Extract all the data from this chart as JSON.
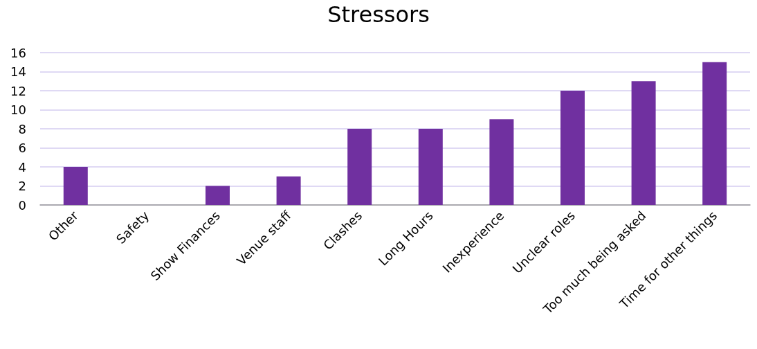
{
  "chart_data": {
    "type": "bar",
    "title": "Stressors",
    "categories": [
      "Other",
      "Safety",
      "Show Finances",
      "Venue staff",
      "Clashes",
      "Long Hours",
      "Inexperience",
      "Unclear roles",
      "Too much being asked",
      "Time for other things"
    ],
    "values": [
      4,
      0,
      2,
      3,
      8,
      8,
      9,
      12,
      13,
      15
    ],
    "color": "#7030a0",
    "ylim": [
      0,
      16
    ],
    "yticks": [
      0,
      2,
      4,
      6,
      8,
      10,
      12,
      14,
      16
    ],
    "grid": "y"
  }
}
